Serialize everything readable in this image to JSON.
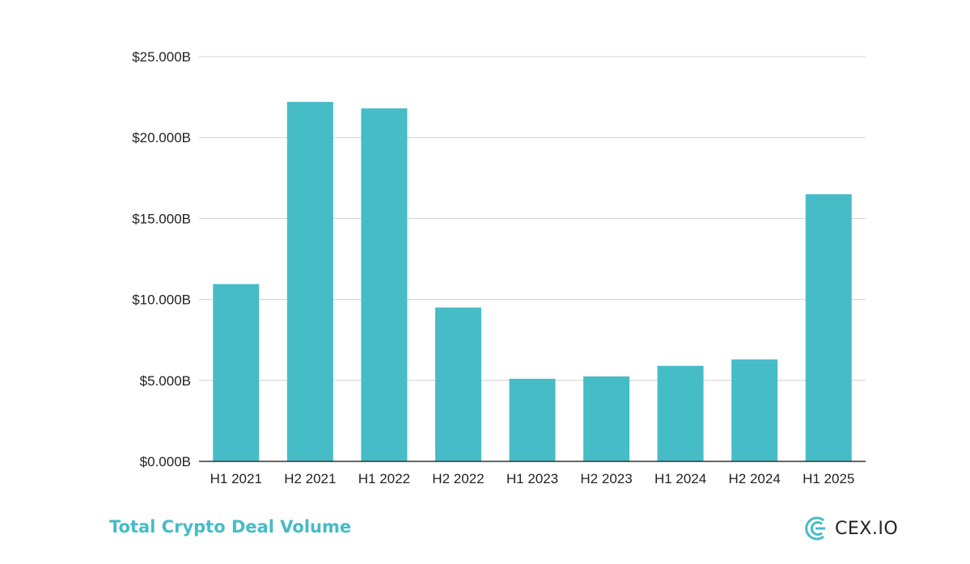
{
  "chart_data": {
    "type": "bar",
    "categories": [
      "H1 2021",
      "H2 2021",
      "H1 2022",
      "H2 2022",
      "H1 2023",
      "H2 2023",
      "H1 2024",
      "H2 2024",
      "H1 2025"
    ],
    "values": [
      10.95,
      22.2,
      21.8,
      9.5,
      5.1,
      5.25,
      5.9,
      6.3,
      16.5
    ],
    "ylim": [
      0,
      25
    ],
    "yticks": [
      0,
      5,
      10,
      15,
      20,
      25
    ],
    "ytick_labels": [
      "$0.000B",
      "$5.000B",
      "$10.000B",
      "$15.000B",
      "$20.000B",
      "$25.000B"
    ],
    "title": "",
    "xlabel": "",
    "ylabel": "",
    "grid": true,
    "bar_color": "#46bcc7"
  },
  "footer": {
    "title": "Total Crypto Deal Volume",
    "brand": "CEX.IO"
  },
  "colors": {
    "accent": "#45bcc7",
    "grid": "#d0d0d0",
    "axis": "#333333"
  }
}
